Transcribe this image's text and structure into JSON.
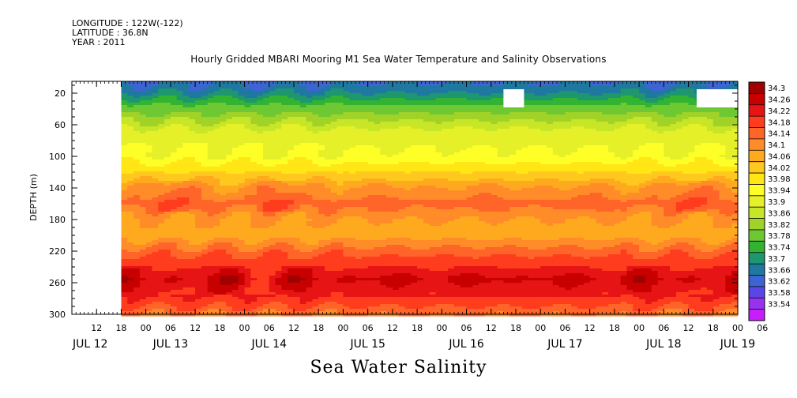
{
  "header": {
    "longitude": "LONGITUDE : 122W(-122)",
    "latitude": "LATITUDE : 36.8N",
    "year": "YEAR : 2011"
  },
  "chart_data": {
    "type": "heatmap",
    "title": "Hourly Gridded MBARI Mooring M1 Sea Water Temperature and Salinity Observations",
    "xlabel": "Sea Water Salinity",
    "ylabel": "DEPTH (m)",
    "x_range_hours_from_jul12_00": [
      6,
      168
    ],
    "data_start_hour": 18,
    "ylim": [
      300,
      5
    ],
    "y_ticks": [
      20,
      60,
      100,
      140,
      180,
      220,
      260,
      300
    ],
    "x_hour_ticks": [
      {
        "label": "12",
        "hour": 12
      },
      {
        "label": "18",
        "hour": 18
      },
      {
        "label": "00",
        "hour": 24
      },
      {
        "label": "06",
        "hour": 30
      },
      {
        "label": "12",
        "hour": 36
      },
      {
        "label": "18",
        "hour": 42
      },
      {
        "label": "00",
        "hour": 48
      },
      {
        "label": "06",
        "hour": 54
      },
      {
        "label": "12",
        "hour": 60
      },
      {
        "label": "18",
        "hour": 66
      },
      {
        "label": "00",
        "hour": 72
      },
      {
        "label": "06",
        "hour": 78
      },
      {
        "label": "12",
        "hour": 84
      },
      {
        "label": "18",
        "hour": 90
      },
      {
        "label": "00",
        "hour": 96
      },
      {
        "label": "06",
        "hour": 102
      },
      {
        "label": "12",
        "hour": 108
      },
      {
        "label": "18",
        "hour": 114
      },
      {
        "label": "00",
        "hour": 120
      },
      {
        "label": "06",
        "hour": 126
      },
      {
        "label": "12",
        "hour": 132
      },
      {
        "label": "18",
        "hour": 138
      },
      {
        "label": "00",
        "hour": 144
      },
      {
        "label": "06",
        "hour": 150
      },
      {
        "label": "12",
        "hour": 156
      },
      {
        "label": "18",
        "hour": 162
      },
      {
        "label": "00",
        "hour": 168
      },
      {
        "label": "06",
        "hour": 174
      }
    ],
    "x_day_labels": [
      {
        "label": "JUL 12",
        "hour": 0
      },
      {
        "label": "JUL 13",
        "hour": 30
      },
      {
        "label": "JUL 14",
        "hour": 54
      },
      {
        "label": "JUL 15",
        "hour": 78
      },
      {
        "label": "JUL 16",
        "hour": 102
      },
      {
        "label": "JUL 17",
        "hour": 126
      },
      {
        "label": "JUL 18",
        "hour": 150
      },
      {
        "label": "JUL 19",
        "hour": 168
      }
    ],
    "colorbar": {
      "labels": [
        "34.3",
        "34.26",
        "34.22",
        "34.18",
        "34.14",
        "34.1",
        "34.06",
        "34.02",
        "33.98",
        "33.94",
        "33.9",
        "33.86",
        "33.82",
        "33.78",
        "33.74",
        "33.7",
        "33.66",
        "33.62",
        "33.58",
        "33.54"
      ],
      "colors": [
        "#a00000",
        "#c80000",
        "#e61414",
        "#ff3c1e",
        "#ff6428",
        "#ff8c28",
        "#ffaa1e",
        "#ffc81e",
        "#ffe614",
        "#ffff28",
        "#e6f028",
        "#c8e628",
        "#a0d228",
        "#6ec832",
        "#32b432",
        "#1e966e",
        "#1e78a0",
        "#3c64d2",
        "#5a46e6",
        "#9632f0",
        "#c81efa"
      ]
    },
    "depth_profile": [
      {
        "depth": 10,
        "salinity": 33.66
      },
      {
        "depth": 20,
        "salinity": 33.7
      },
      {
        "depth": 35,
        "salinity": 33.78
      },
      {
        "depth": 50,
        "salinity": 33.84
      },
      {
        "depth": 70,
        "salinity": 33.92
      },
      {
        "depth": 100,
        "salinity": 33.95
      },
      {
        "depth": 120,
        "salinity": 34.02
      },
      {
        "depth": 140,
        "salinity": 34.1
      },
      {
        "depth": 160,
        "salinity": 34.15
      },
      {
        "depth": 180,
        "salinity": 34.1
      },
      {
        "depth": 200,
        "salinity": 34.08
      },
      {
        "depth": 220,
        "salinity": 34.16
      },
      {
        "depth": 240,
        "salinity": 34.22
      },
      {
        "depth": 255,
        "salinity": 34.27
      },
      {
        "depth": 270,
        "salinity": 34.24
      },
      {
        "depth": 285,
        "salinity": 34.2
      },
      {
        "depth": 300,
        "salinity": 34.14
      }
    ],
    "missing_data": [
      {
        "hour_from": 6,
        "hour_to": 18,
        "depth_from": 5,
        "depth_to": 300
      },
      {
        "hour_from": 111,
        "hour_to": 116,
        "depth_from": 15,
        "depth_to": 38
      },
      {
        "hour_from": 158,
        "hour_to": 172,
        "depth_from": 15,
        "depth_to": 38
      }
    ]
  }
}
